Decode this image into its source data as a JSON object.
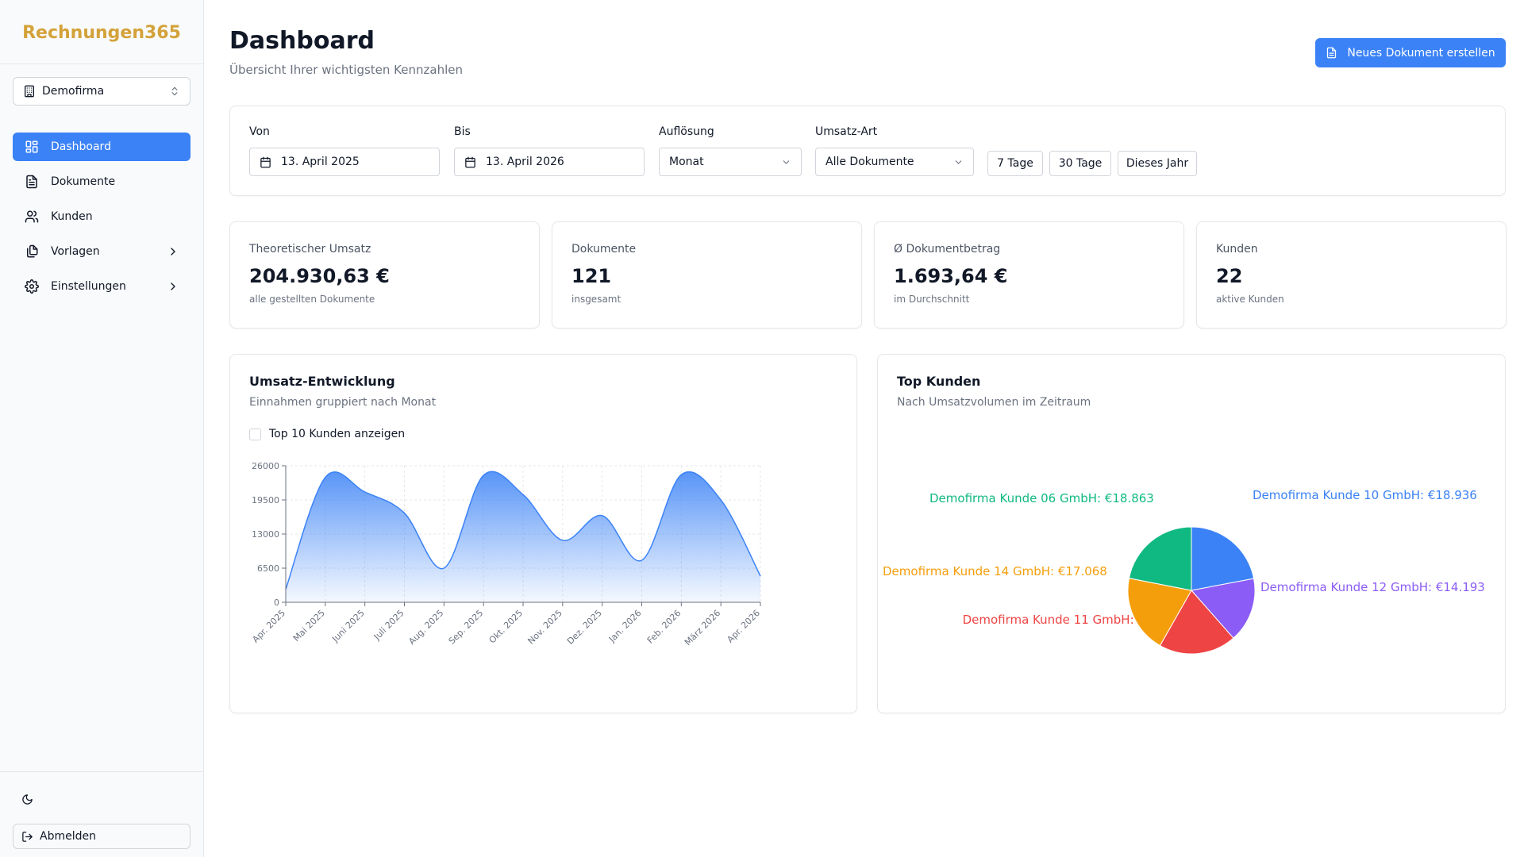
{
  "app": {
    "brand": "Rechnungen365"
  },
  "sidebar": {
    "company": "Demofirma",
    "items": [
      {
        "label": "Dashboard",
        "icon": "dashboard-icon",
        "active": true
      },
      {
        "label": "Dokumente",
        "icon": "document-icon",
        "active": false
      },
      {
        "label": "Kunden",
        "icon": "users-icon",
        "active": false
      },
      {
        "label": "Vorlagen",
        "icon": "templates-icon",
        "active": false,
        "expandable": true
      },
      {
        "label": "Einstellungen",
        "icon": "gear-icon",
        "active": false,
        "expandable": true
      }
    ],
    "logout_label": "Abmelden"
  },
  "header": {
    "title": "Dashboard",
    "subtitle": "Übersicht Ihrer wichtigsten Kennzahlen",
    "new_document_label": "Neues Dokument erstellen"
  },
  "filters": {
    "from_label": "Von",
    "from_value": "13. April 2025",
    "to_label": "Bis",
    "to_value": "13. April 2026",
    "resolution_label": "Auflösung",
    "resolution_value": "Monat",
    "type_label": "Umsatz-Art",
    "type_value": "Alle Dokumente",
    "quick": [
      "7 Tage",
      "30 Tage",
      "Dieses Jahr"
    ]
  },
  "stats": [
    {
      "title": "Theoretischer Umsatz",
      "value": "204.930,63 €",
      "sub": "alle gestellten Dokumente"
    },
    {
      "title": "Dokumente",
      "value": "121",
      "sub": "insgesamt"
    },
    {
      "title": "Ø Dokumentbetrag",
      "value": "1.693,64 €",
      "sub": "im Durchschnitt"
    },
    {
      "title": "Kunden",
      "value": "22",
      "sub": "aktive Kunden"
    }
  ],
  "revenue_chart": {
    "title": "Umsatz-Entwicklung",
    "subtitle": "Einnahmen gruppiert nach Monat",
    "checkbox_label": "Top 10 Kunden anzeigen",
    "checkbox_checked": false
  },
  "top_customers_chart": {
    "title": "Top Kunden",
    "subtitle": "Nach Umsatzvolumen im Zeitraum"
  },
  "colors": {
    "accent": "#3b82f6",
    "brand": "#d4a23a"
  },
  "chart_data": [
    {
      "type": "area",
      "categories": [
        "Apr. 2025",
        "Mai 2025",
        "Juni 2025",
        "Juli 2025",
        "Aug. 2025",
        "Sep. 2025",
        "Okt. 2025",
        "Nov. 2025",
        "Dez. 2025",
        "Jan. 2026",
        "Feb. 2026",
        "März 2026",
        "Apr. 2026"
      ],
      "values": [
        2500,
        23800,
        21000,
        17000,
        6500,
        24200,
        20500,
        11800,
        16500,
        8000,
        24300,
        19500,
        5000
      ],
      "yticks": [
        0,
        6500,
        13000,
        19500,
        26000
      ],
      "ylim": [
        0,
        26000
      ],
      "grid": true,
      "color": "#3b82f6"
    },
    {
      "type": "pie",
      "labels": [
        "Demofirma Kunde 10 GmbH",
        "Demofirma Kunde 12 GmbH",
        "Demofirma Kunde 11 GmbH",
        "Demofirma Kunde 14 GmbH",
        "Demofirma Kunde 06 GmbH"
      ],
      "display": [
        "Demofirma Kunde 10 GmbH: €18.936",
        "Demofirma Kunde 12 GmbH: €14.193",
        "Demofirma Kunde 11 GmbH: €16.950",
        "Demofirma Kunde 14 GmbH: €17.068",
        "Demofirma Kunde 06 GmbH: €18.863"
      ],
      "values": [
        18936,
        14193,
        16950,
        17068,
        18863
      ],
      "colors": [
        "#3b82f6",
        "#8b5cf6",
        "#ef4444",
        "#f59e0b",
        "#10b981"
      ]
    }
  ]
}
